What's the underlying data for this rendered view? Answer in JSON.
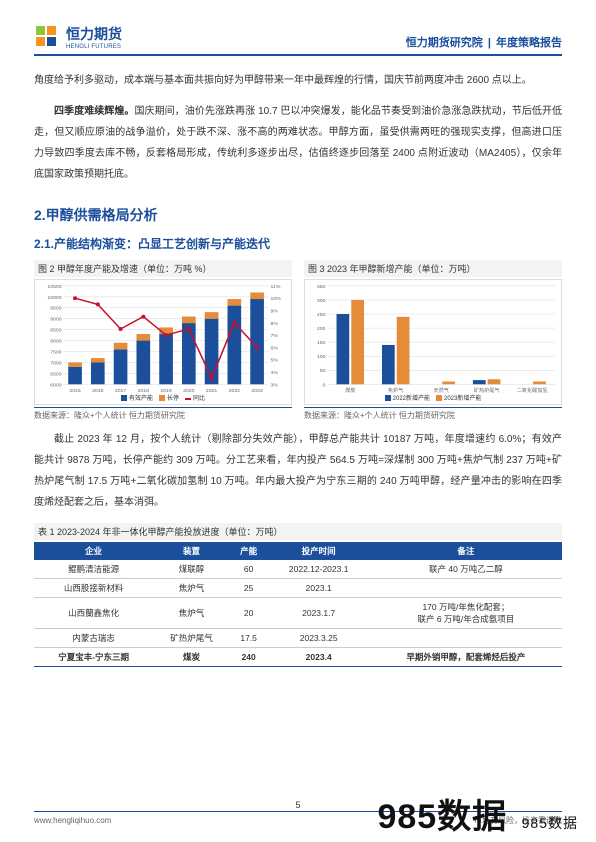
{
  "header": {
    "logo_cn": "恒力期货",
    "logo_en": "HENGLI FUTURES",
    "right_org": "恒力期货研究院",
    "right_report": "年度策略报告"
  },
  "para1": "角度给予利多驱动，成本端与基本面共振向好为甲醇带来一年中最辉煌的行情，国庆节前两度冲击 2600 点以上。",
  "para2_lead": "四季度难续辉煌。",
  "para2": "国庆期间，油价先涨跌再涨 10.7 巴以冲突爆发，能化品节奏受到油价急涨急跌扰动，节后低开低走，但又顺应原油的战争溢价，处于跌不深、涨不高的两难状态。甲醇方面，虽受供需两旺的强现实支撑，但高进口压力导致四季度去库不畅，反套格局形成，传统利多逐步出尽，估值终逐步回落至 2400 点附近波动（MA2405），仅余年底国家政策预期托底。",
  "section2": "2.甲醇供需格局分析",
  "section21": "2.1.产能结构渐变：凸显工艺创新与产能迭代",
  "chart1": {
    "title": "图 2 甲醇年度产能及增速（单位：万吨 %）",
    "source": "数据来源：隆众+个人统计 恒力期货研究院",
    "type": "bar+line",
    "categories": [
      "2015",
      "2016",
      "2017",
      "2018",
      "2019",
      "2020",
      "2021",
      "2022",
      "2023"
    ],
    "bars_eff": [
      6800,
      7000,
      7600,
      8000,
      8300,
      8800,
      9000,
      9600,
      9900
    ],
    "bars_stop": [
      200,
      200,
      300,
      300,
      300,
      300,
      300,
      300,
      300
    ],
    "line_growth": [
      10,
      9.5,
      7.5,
      8.5,
      7.0,
      7.5,
      3.5,
      8.0,
      6.0
    ],
    "y1_min": 6000,
    "y1_max": 10500,
    "y1_step": 500,
    "y2_min": 3,
    "y2_max": 11,
    "y2_step": 1,
    "colors": {
      "eff": "#1b4f9c",
      "stop": "#e58b3a",
      "line": "#c8102e",
      "grid": "#d9d9d9",
      "bg": "#ffffff"
    },
    "legend": [
      "有效产能",
      "长停",
      "同比"
    ]
  },
  "chart2": {
    "title": "图 3 2023 年甲醇新增产能（单位：万吨）",
    "source": "数据来源：隆众+个人统计 恒力期货研究院",
    "type": "bar",
    "categories": [
      "煤炭",
      "焦炉气",
      "天然气",
      "矿热炉尾气",
      "二氧化碳加氢"
    ],
    "series_2022": [
      250,
      140,
      0,
      15,
      0
    ],
    "series_2023": [
      300,
      240,
      10,
      18,
      10
    ],
    "y_min": 0,
    "y_max": 350,
    "y_step": 50,
    "colors": {
      "s2022": "#1b4f9c",
      "s2023": "#e58b3a",
      "grid": "#d9d9d9",
      "bg": "#ffffff"
    },
    "legend": [
      "2022新增产能",
      "2023新增产能"
    ]
  },
  "para3": "截止 2023 年 12 月，按个人统计（剔除部分失效产能），甲醇总产能共计 10187 万吨，年度增速约 6.0%；有效产能共计 9878 万吨，长停产能约 309 万吨。分工艺来看，年内投产 564.5 万吨=深煤制 300 万吨+焦炉气制 237 万吨+矿热炉尾气制 17.5 万吨+二氧化碳加氢制 10 万吨。年内最大投产为宁东三期的 240 万吨甲醇，经产量冲击的影响在四季度烯烃配套之后，基本消弭。",
  "table": {
    "title": "表 1 2023-2024 年非一体化甲醇产能投放进度（单位：万吨）",
    "columns": [
      "企业",
      "装置",
      "产能",
      "投产时间",
      "备注"
    ],
    "rows": [
      [
        "鲲鹏清洁能源",
        "煤联醇",
        "60",
        "2022.12-2023.1",
        "联产 40 万吨乙二醇"
      ],
      [
        "山西股接新材料",
        "焦炉气",
        "25",
        "2023.1",
        ""
      ],
      [
        "山西蘭鑫焦化",
        "焦炉气",
        "20",
        "2023.1.7",
        "170 万吨/年焦化配套；\n联产 6 万吨/年合成氨项目"
      ],
      [
        "内蒙古瑞志",
        "矿热炉尾气",
        "17.5",
        "2023.3.25",
        ""
      ],
      [
        "宁夏宝丰-宁东三期",
        "煤炭",
        "240",
        "2023.4",
        "早期外销甲醇，配套烯烃后投产"
      ]
    ],
    "highlight_row": 4,
    "header_bg": "#1b4f9c"
  },
  "footer": {
    "url": "www.hengliqihuo.com",
    "disclaimer": "市场有风险，投资需谨慎",
    "page": "5"
  },
  "watermark": {
    "big": "985数据",
    "sub": "985数据"
  }
}
